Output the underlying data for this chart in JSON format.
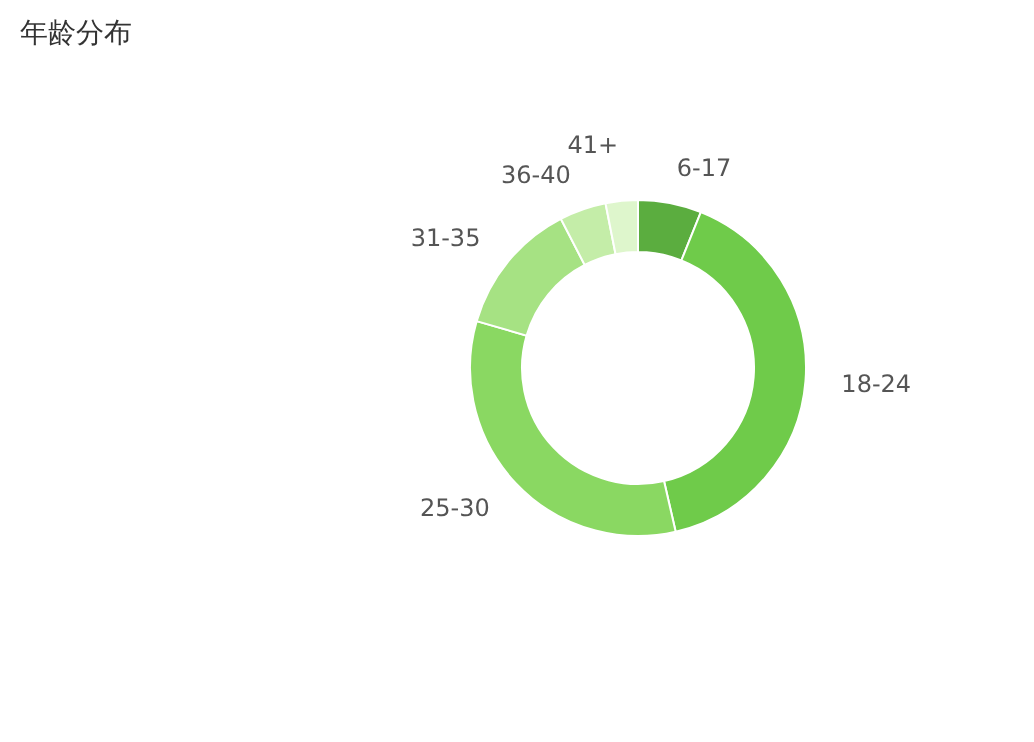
{
  "chart_data": {
    "type": "donut",
    "title": "年龄分布",
    "categories": [
      "6-17",
      "18-24",
      "25-30",
      "31-35",
      "36-40",
      "41+"
    ],
    "values": [
      6.1,
      40.3,
      33.1,
      12.9,
      4.5,
      3.1
    ],
    "colors": [
      "#5bad3f",
      "#6fcb4a",
      "#8ad862",
      "#a6e283",
      "#c4eda8",
      "#def6cc"
    ],
    "legend": false
  }
}
